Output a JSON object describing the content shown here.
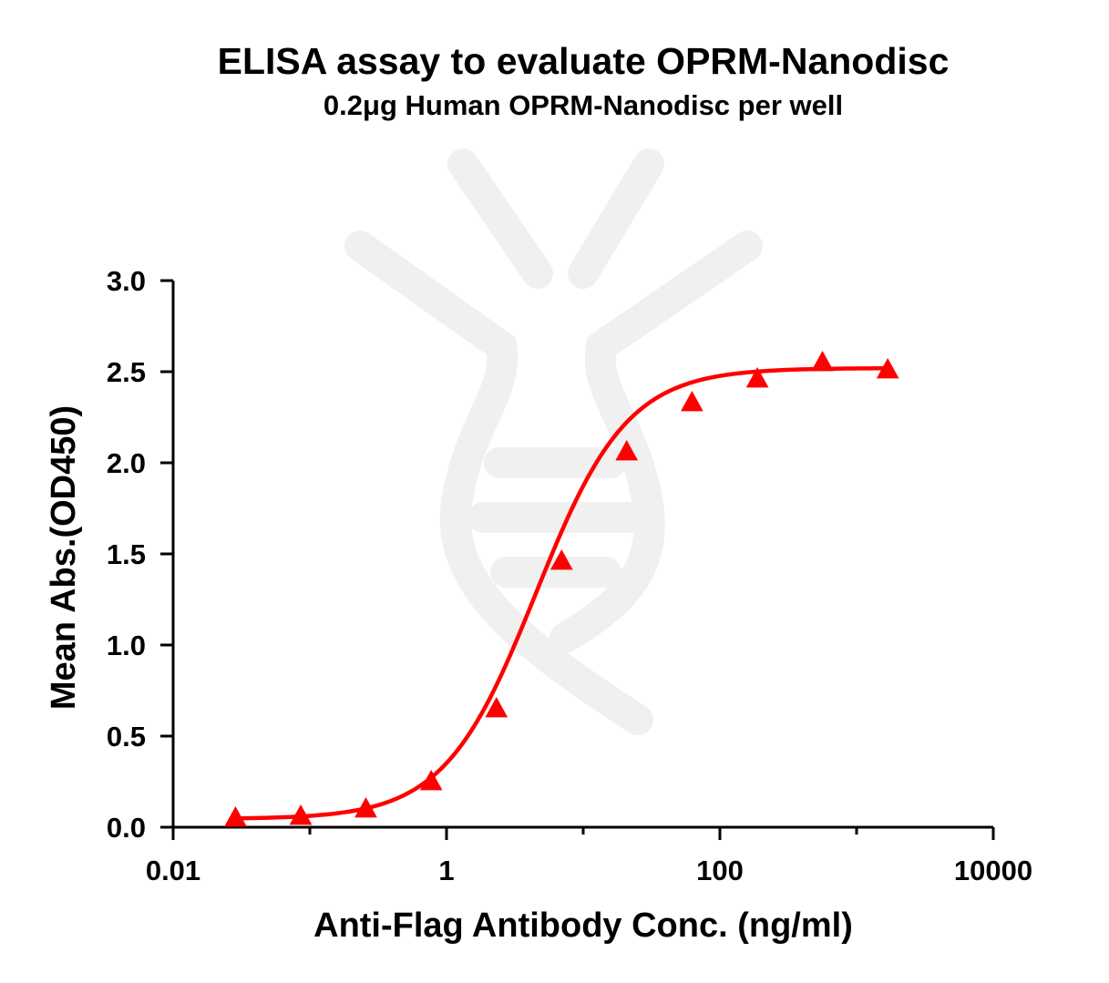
{
  "chart_data": {
    "type": "scatter",
    "title": "ELISA assay to evaluate OPRM-Nanodisc",
    "subtitle": "0.2μg Human OPRM-Nanodisc per well",
    "xlabel": "Anti-Flag Antibody Conc. (ng/ml)",
    "ylabel": "Mean Abs.(OD450)",
    "x_scale": "log",
    "xlim": [
      0.01,
      10000
    ],
    "ylim": [
      0,
      3.0
    ],
    "x_ticks": [
      0.01,
      1,
      100,
      10000
    ],
    "x_tick_labels": [
      "0.01",
      "1",
      "100",
      "10000"
    ],
    "y_ticks": [
      0.0,
      0.5,
      1.0,
      1.5,
      2.0,
      2.5,
      3.0
    ],
    "y_tick_labels": [
      "0.0",
      "0.5",
      "1.0",
      "1.5",
      "2.0",
      "2.5",
      "3.0"
    ],
    "grid": false,
    "marker": "triangle",
    "color": "#ff0000",
    "series": [
      {
        "x": [
          0.0286,
          0.0858,
          0.257,
          0.772,
          2.32,
          6.95,
          20.8,
          62.5,
          188,
          563,
          1690
        ],
        "y": [
          0.05,
          0.06,
          0.1,
          0.25,
          0.65,
          1.46,
          2.06,
          2.33,
          2.46,
          2.55,
          2.51
        ]
      }
    ],
    "fit_curve": {
      "model": "4PL",
      "bottom": 0.045,
      "top": 2.52,
      "ec50": 4.5,
      "hill": 1.3
    }
  }
}
